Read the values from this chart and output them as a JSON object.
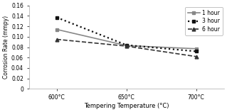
{
  "x_labels": [
    "600°C",
    "650°C",
    "700°C"
  ],
  "x_values": [
    0,
    1,
    2
  ],
  "x_tick_pos": [
    0,
    1,
    2
  ],
  "series": [
    {
      "label": "1 hour",
      "values": [
        0.114,
        0.083,
        0.077
      ],
      "linestyle": "-",
      "marker": "s",
      "color": "#888888",
      "linewidth": 1.2,
      "markersize": 3.5
    },
    {
      "label": "3 hour",
      "values": [
        0.137,
        0.084,
        0.072
      ],
      "linestyle": ":",
      "marker": "s",
      "color": "#111111",
      "linewidth": 1.6,
      "markersize": 3.5
    },
    {
      "label": "6 hour",
      "values": [
        0.095,
        0.082,
        0.062
      ],
      "linestyle": "--",
      "marker": "^",
      "color": "#333333",
      "linewidth": 1.2,
      "markersize": 3.5
    }
  ],
  "ylabel": "Corrosion Rate (mmpy)",
  "xlabel": "Tempering Temperature (°C)",
  "ylim": [
    0,
    0.16
  ],
  "yticks": [
    0,
    0.02,
    0.04,
    0.06,
    0.08,
    0.1,
    0.12,
    0.14,
    0.16
  ],
  "background_color": "#ffffff",
  "legend_loc": "upper right"
}
